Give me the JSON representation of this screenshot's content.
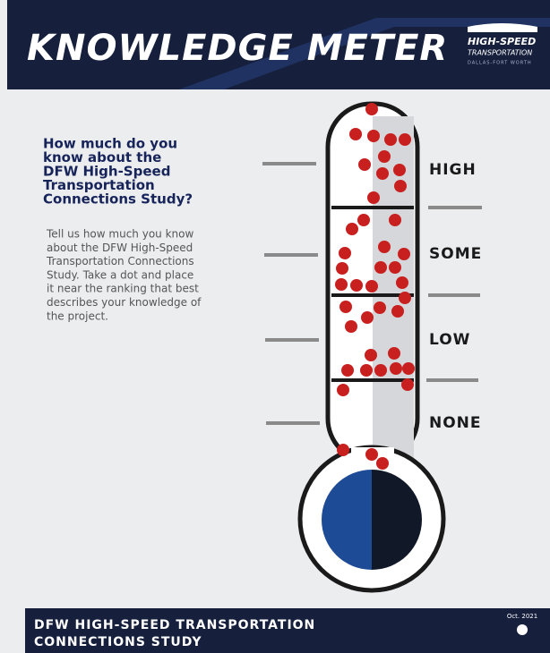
{
  "header": {
    "title": "KNOWLEDGE METER",
    "logo": [
      "HIGH-SPEED",
      "TRANSPORTATION",
      "DALLAS-FORT WORTH"
    ]
  },
  "question": [
    "How much do you",
    "know about the",
    "DFW High-Speed",
    "Transportation",
    "Connections Study?"
  ],
  "instructions": [
    "Tell us how much you know",
    "about the DFW High-Speed",
    "Transportation Connections",
    "Study. Take a dot and place",
    "it near the ranking that best",
    "describes your knowledge of",
    "the project."
  ],
  "levels": [
    "HIGH",
    "SOME",
    "LOW",
    "NONE"
  ],
  "footer": {
    "title": [
      "DFW HIGH-SPEED TRANSPORTATION",
      "CONNECTIONS STUDY"
    ],
    "date": "Oct. 2021"
  }
}
